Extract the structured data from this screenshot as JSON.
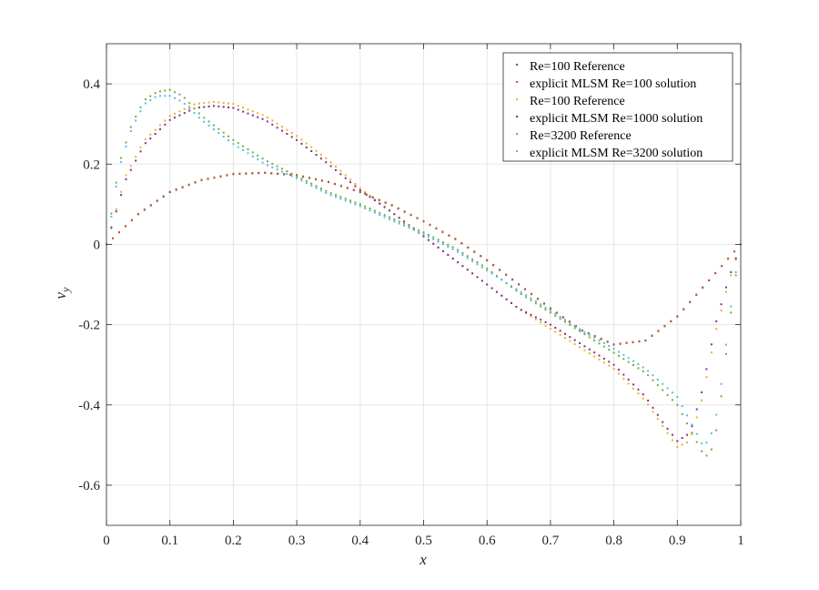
{
  "chart_data": {
    "type": "scatter",
    "title": "",
    "xlabel": "x",
    "ylabel": "v_y",
    "xlim": [
      0,
      1
    ],
    "ylim": [
      -0.7,
      0.5
    ],
    "grid": true,
    "legend_position": "upper right",
    "x_ticks": [
      "0",
      "0.1",
      "0.2",
      "0.3",
      "0.4",
      "0.5",
      "0.6",
      "0.7",
      "0.8",
      "0.9",
      "1"
    ],
    "y_ticks": [
      "-0.6",
      "-0.4",
      "-0.2",
      "0",
      "0.2",
      "0.4"
    ],
    "series": [
      {
        "name": "Re=100 Reference",
        "color": "#0072BD",
        "x": [
          0,
          0.05,
          0.1,
          0.15,
          0.2,
          0.25,
          0.3,
          0.35,
          0.4,
          0.45,
          0.5,
          0.55,
          0.6,
          0.65,
          0.7,
          0.75,
          0.8,
          0.85,
          0.9,
          0.95,
          1.0
        ],
        "y": [
          0,
          0.075,
          0.13,
          0.16,
          0.175,
          0.178,
          0.172,
          0.155,
          0.13,
          0.097,
          0.057,
          0.013,
          -0.04,
          -0.1,
          -0.16,
          -0.215,
          -0.25,
          -0.24,
          -0.18,
          -0.09,
          0
        ]
      },
      {
        "name": "explicit MLSM Re=100 solution",
        "color": "#D95319",
        "x": [
          0,
          0.05,
          0.1,
          0.15,
          0.2,
          0.25,
          0.3,
          0.35,
          0.4,
          0.45,
          0.5,
          0.55,
          0.6,
          0.65,
          0.7,
          0.75,
          0.8,
          0.85,
          0.9,
          0.95,
          1.0
        ],
        "y": [
          0,
          0.076,
          0.131,
          0.161,
          0.176,
          0.179,
          0.173,
          0.156,
          0.131,
          0.098,
          0.058,
          0.014,
          -0.039,
          -0.099,
          -0.159,
          -0.214,
          -0.249,
          -0.239,
          -0.179,
          -0.089,
          0
        ]
      },
      {
        "name": "Re=100 Reference",
        "color": "#EDB120",
        "x": [
          0,
          0.03,
          0.06,
          0.1,
          0.14,
          0.17,
          0.2,
          0.25,
          0.3,
          0.35,
          0.4,
          0.45,
          0.5,
          0.55,
          0.6,
          0.65,
          0.7,
          0.75,
          0.8,
          0.85,
          0.88,
          0.9,
          0.92,
          0.94,
          0.96,
          0.98,
          1.0
        ],
        "y": [
          0,
          0.17,
          0.26,
          0.32,
          0.35,
          0.355,
          0.35,
          0.32,
          0.27,
          0.21,
          0.14,
          0.08,
          0.02,
          -0.04,
          -0.1,
          -0.16,
          -0.21,
          -0.26,
          -0.31,
          -0.39,
          -0.46,
          -0.505,
          -0.49,
          -0.38,
          -0.22,
          -0.1,
          0
        ]
      },
      {
        "name": "explicit MLSM Re=1000 solution",
        "color": "#7E2F8E",
        "x": [
          0,
          0.03,
          0.06,
          0.1,
          0.14,
          0.17,
          0.2,
          0.25,
          0.3,
          0.35,
          0.4,
          0.45,
          0.5,
          0.55,
          0.6,
          0.65,
          0.7,
          0.75,
          0.8,
          0.85,
          0.88,
          0.9,
          0.92,
          0.94,
          0.96,
          0.98,
          1.0
        ],
        "y": [
          0,
          0.16,
          0.25,
          0.31,
          0.34,
          0.345,
          0.34,
          0.31,
          0.26,
          0.2,
          0.135,
          0.08,
          0.02,
          -0.04,
          -0.1,
          -0.16,
          -0.2,
          -0.25,
          -0.3,
          -0.38,
          -0.45,
          -0.49,
          -0.47,
          -0.36,
          -0.2,
          -0.09,
          0
        ]
      },
      {
        "name": "Re=3200 Reference",
        "color": "#77AC30",
        "x": [
          0,
          0.01,
          0.02,
          0.04,
          0.06,
          0.08,
          0.1,
          0.12,
          0.15,
          0.2,
          0.25,
          0.3,
          0.35,
          0.4,
          0.45,
          0.5,
          0.55,
          0.6,
          0.65,
          0.7,
          0.75,
          0.8,
          0.85,
          0.9,
          0.92,
          0.94,
          0.95,
          0.96,
          0.97,
          0.98,
          0.99,
          1.0
        ],
        "y": [
          0,
          0.1,
          0.2,
          0.3,
          0.36,
          0.38,
          0.385,
          0.37,
          0.32,
          0.26,
          0.21,
          0.17,
          0.13,
          0.1,
          0.065,
          0.03,
          -0.01,
          -0.06,
          -0.12,
          -0.17,
          -0.22,
          -0.27,
          -0.32,
          -0.4,
          -0.46,
          -0.52,
          -0.53,
          -0.48,
          -0.37,
          -0.23,
          -0.1,
          0
        ]
      },
      {
        "name": "explicit MLSM Re=3200 solution",
        "color": "#4DBEEE",
        "x": [
          0,
          0.01,
          0.02,
          0.04,
          0.06,
          0.08,
          0.1,
          0.12,
          0.15,
          0.2,
          0.25,
          0.3,
          0.35,
          0.4,
          0.45,
          0.5,
          0.55,
          0.6,
          0.65,
          0.7,
          0.75,
          0.8,
          0.85,
          0.9,
          0.92,
          0.94,
          0.95,
          0.96,
          0.97,
          0.98,
          0.99,
          1.0
        ],
        "y": [
          0,
          0.09,
          0.19,
          0.29,
          0.35,
          0.37,
          0.37,
          0.355,
          0.31,
          0.25,
          0.2,
          0.165,
          0.125,
          0.095,
          0.06,
          0.025,
          -0.015,
          -0.065,
          -0.115,
          -0.165,
          -0.215,
          -0.26,
          -0.31,
          -0.38,
          -0.44,
          -0.5,
          -0.49,
          -0.44,
          -0.34,
          -0.21,
          -0.09,
          0
        ]
      }
    ]
  }
}
